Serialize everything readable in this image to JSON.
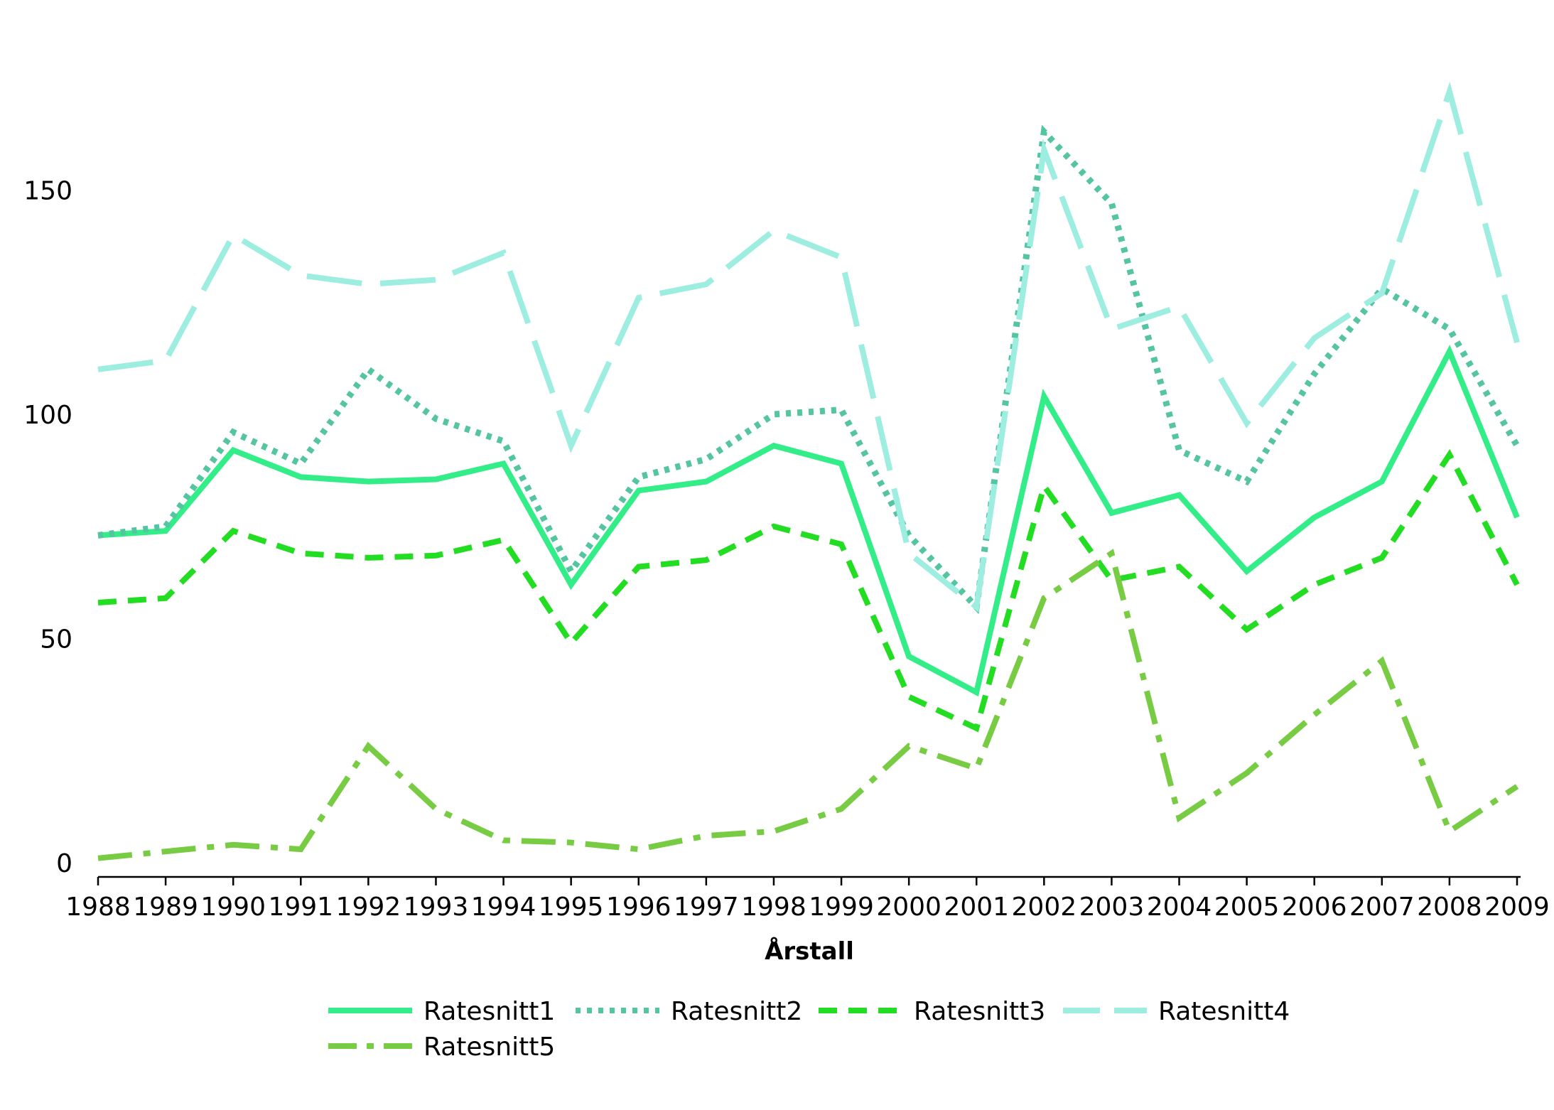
{
  "chart_data": {
    "type": "line",
    "title": "",
    "xlabel": "Årstall",
    "ylabel": "",
    "x": [
      "1988",
      "1989",
      "1990",
      "1991",
      "1992",
      "1993",
      "1994",
      "1995",
      "1996",
      "1997",
      "1998",
      "1999",
      "2000",
      "2001",
      "2002",
      "2003",
      "2004",
      "2005",
      "2006",
      "2007",
      "2008",
      "2009"
    ],
    "yticks": [
      "0",
      "50",
      "100",
      "150"
    ],
    "ylim": [
      0,
      175
    ],
    "grid": false,
    "legend_position": "bottom",
    "series": [
      {
        "name": "Ratesnitt1",
        "color": "#33ee88",
        "style": "solid",
        "values": [
          73,
          74,
          92,
          86,
          85,
          85.5,
          89,
          62,
          83,
          85,
          93,
          89,
          46,
          38,
          104,
          78,
          82,
          65,
          77,
          85,
          114,
          77
        ]
      },
      {
        "name": "Ratesnitt2",
        "color": "#55c4a0",
        "style": "dotted",
        "values": [
          73,
          75,
          96,
          89,
          110,
          99,
          94,
          65,
          86,
          90,
          100,
          101,
          73,
          57,
          163,
          147,
          92,
          85,
          109,
          128,
          119,
          93
        ]
      },
      {
        "name": "Ratesnitt3",
        "color": "#22dd22",
        "style": "dashed",
        "values": [
          58,
          59,
          74,
          69,
          68,
          68.5,
          72,
          49,
          66,
          67.5,
          75,
          71,
          37,
          30,
          84,
          63,
          66,
          52,
          62,
          68,
          91,
          62
        ]
      },
      {
        "name": "Ratesnitt4",
        "color": "#9deee0",
        "style": "longdash",
        "values": [
          110,
          112,
          140,
          131,
          129,
          130,
          136,
          93,
          126,
          129,
          141,
          135,
          69,
          57,
          159,
          119,
          124,
          98,
          117,
          127,
          172,
          116
        ]
      },
      {
        "name": "Ratesnitt5",
        "color": "#77cc44",
        "style": "dashdot",
        "values": [
          1,
          2.5,
          4,
          3,
          26,
          12,
          5,
          4.5,
          3,
          6,
          7,
          12,
          26,
          21,
          59,
          69,
          10,
          20,
          33,
          45,
          7,
          17
        ]
      }
    ]
  }
}
